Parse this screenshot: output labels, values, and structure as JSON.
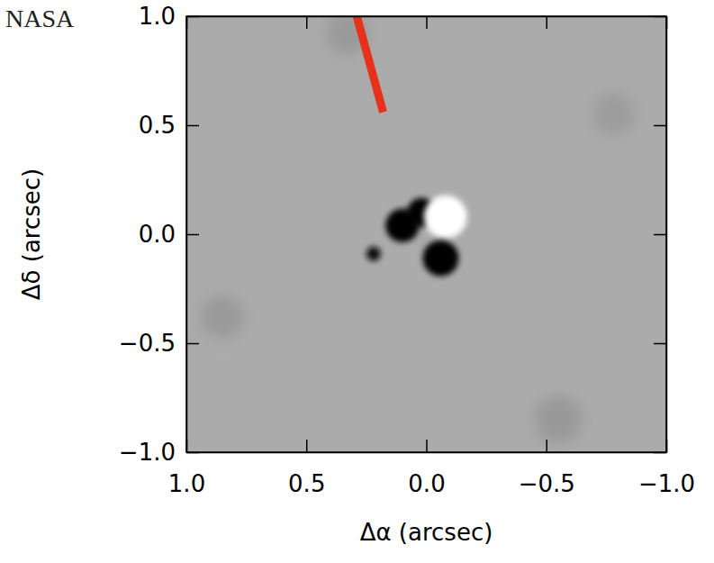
{
  "chart_data": {
    "type": "image",
    "credit": "NASA",
    "x_label": "Δα (arcsec)",
    "y_label": "Δδ (arcsec)",
    "xlim": [
      1.0,
      -1.0
    ],
    "ylim": [
      -1.0,
      1.0
    ],
    "xticks": [
      {
        "value": 1.0,
        "label": "1.0"
      },
      {
        "value": 0.5,
        "label": "0.5"
      },
      {
        "value": 0.0,
        "label": "0.0"
      },
      {
        "value": -0.5,
        "label": "−0.5"
      },
      {
        "value": -1.0,
        "label": "−1.0"
      }
    ],
    "yticks": [
      {
        "value": -1.0,
        "label": "−1.0"
      },
      {
        "value": -0.5,
        "label": "−0.5"
      },
      {
        "value": 0.0,
        "label": "0.0"
      },
      {
        "value": 0.5,
        "label": "0.5"
      },
      {
        "value": 1.0,
        "label": "1.0"
      }
    ],
    "background": "#ababab",
    "blobs": {
      "x": [
        0.33,
        0.85,
        -0.78,
        -0.55,
        0.1,
        0.02,
        -0.08,
        -0.06,
        0.22
      ],
      "y": [
        0.92,
        -0.38,
        0.55,
        -0.85,
        0.04,
        0.1,
        0.08,
        -0.11,
        -0.09
      ],
      "r": [
        0.09,
        0.09,
        0.09,
        0.1,
        0.07,
        0.06,
        0.09,
        0.075,
        0.03
      ],
      "colors": [
        "#9a9a9a",
        "#9a9a9a",
        "#9c9c9c",
        "#999999",
        "#000000",
        "#000000",
        "#ffffff",
        "#000000",
        "#111111"
      ]
    },
    "pointer": {
      "x": [
        0.18,
        0.29
      ],
      "y": [
        0.56,
        1.0
      ],
      "color": "#e8311a"
    }
  }
}
